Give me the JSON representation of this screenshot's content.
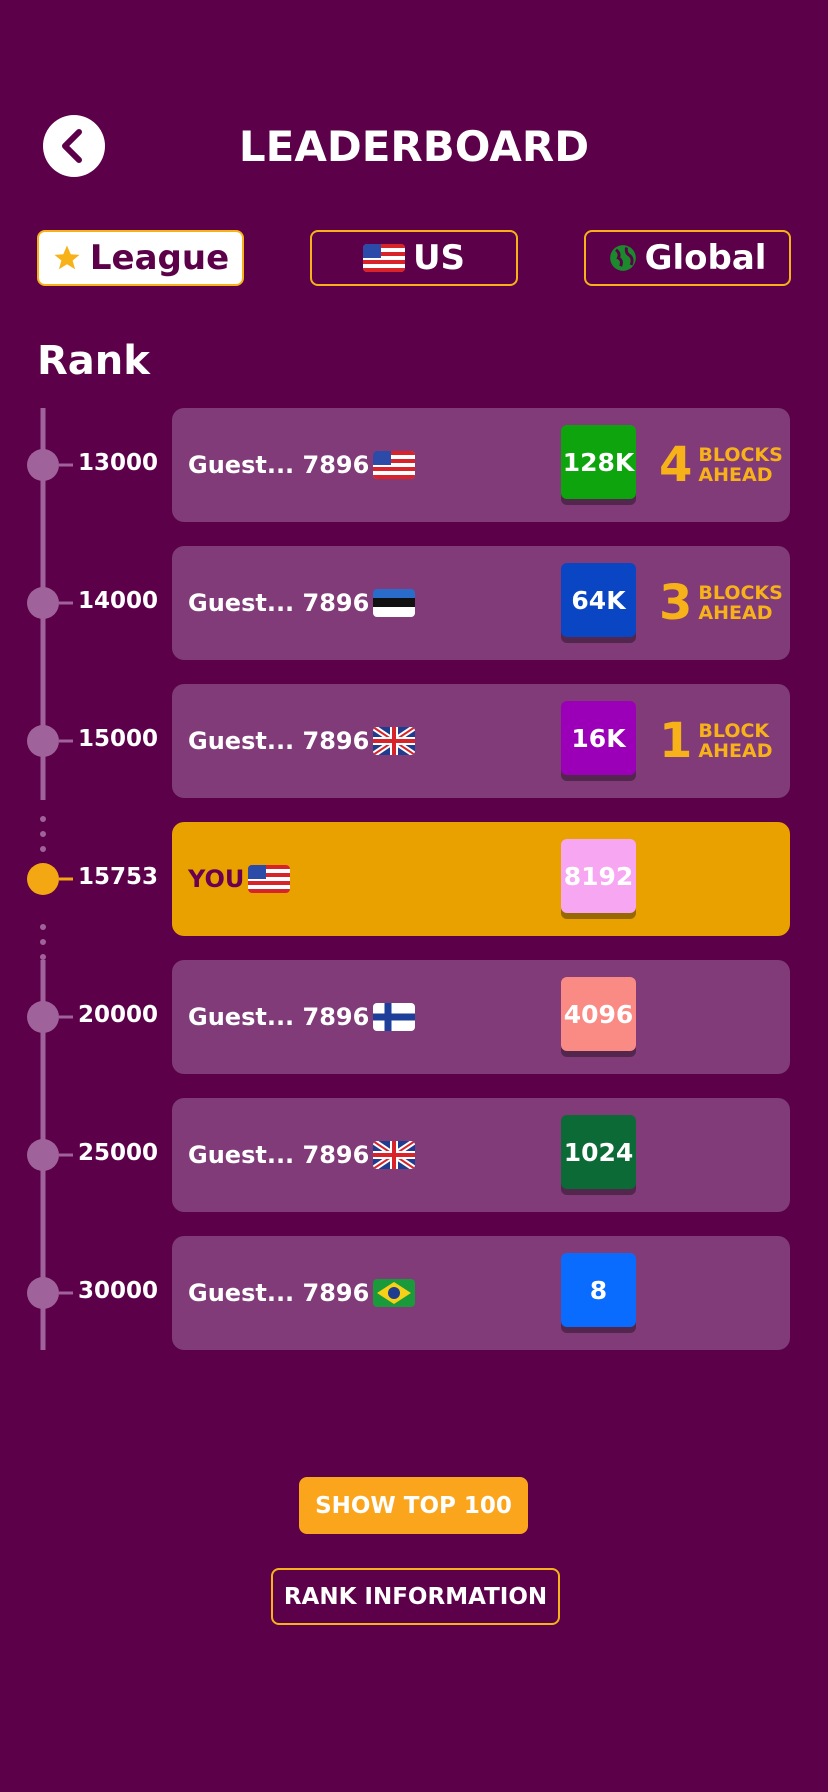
{
  "header": {
    "title": "LEADERBOARD"
  },
  "tabs": [
    "League",
    "US",
    "Global"
  ],
  "rank_label": "Rank",
  "rows": [
    {
      "rank": 13000,
      "name": "Guest... 7896",
      "block": "128K",
      "color": "#0ea40e",
      "ahead": 4,
      "ahead_label": [
        "BLOCKS",
        "AHEAD"
      ]
    },
    {
      "rank": 14000,
      "name": "Guest... 7896",
      "block": "64K",
      "color": "#0a45c4",
      "ahead": 3,
      "ahead_label": [
        "BLOCKS",
        "AHEAD"
      ]
    },
    {
      "rank": 15000,
      "name": "Guest... 7896",
      "block": "16K",
      "color": "#9b00b8",
      "ahead": 1,
      "ahead_label": [
        "BLOCK",
        "AHEAD"
      ]
    },
    {
      "rank": 15753,
      "name": "YOU",
      "block": "8192",
      "color": "#f7a6f2"
    },
    {
      "rank": 20000,
      "name": "Guest... 7896",
      "block": "4096",
      "color": "#fa8a84"
    },
    {
      "rank": 25000,
      "name": "Guest... 7896",
      "block": "1024",
      "color": "#0b6a36"
    },
    {
      "rank": 30000,
      "name": "Guest... 7896",
      "block": "8",
      "color": "#0a6cff"
    }
  ],
  "buttons": [
    "SHOW TOP 100",
    "RANK INFORMATION"
  ]
}
